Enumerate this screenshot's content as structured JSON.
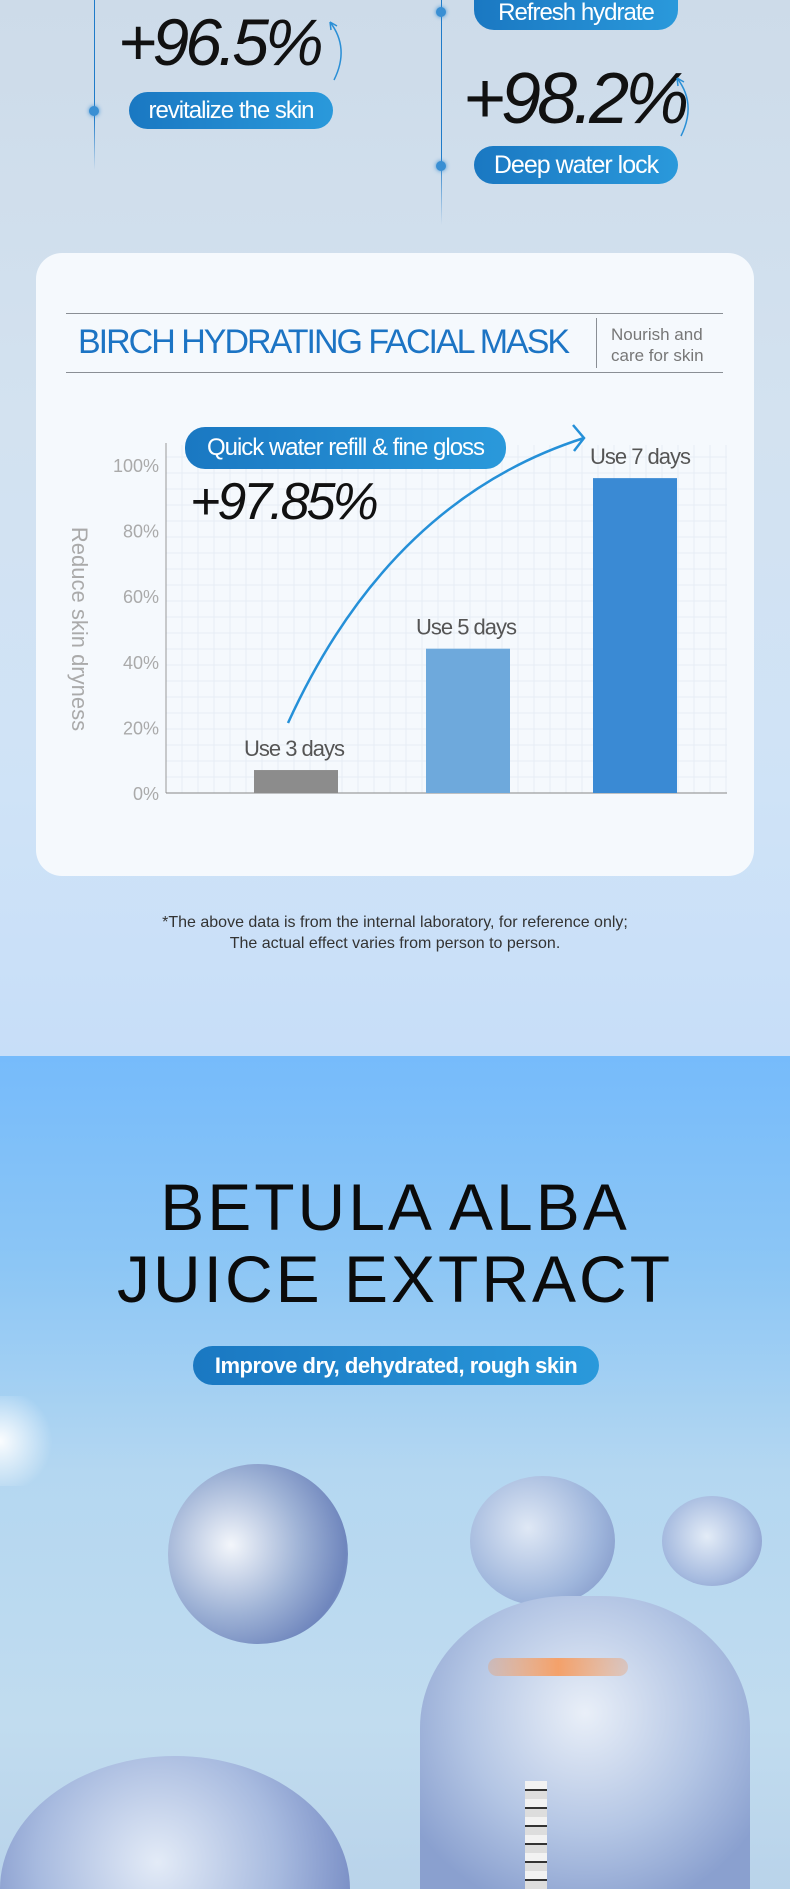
{
  "stats": [
    {
      "value": "+96.5%",
      "label": "revitalize the skin"
    },
    {
      "value": "+98.2%",
      "label": "Deep water lock"
    },
    {
      "label": "Refresh hydrate"
    }
  ],
  "card": {
    "title": "BIRCH HYDRATING FACIAL MASK",
    "subtitle_line1": "Nourish and",
    "subtitle_line2": "care for skin",
    "badge": "Quick water refill & fine gloss",
    "highlight": "+97.85%"
  },
  "chart_data": {
    "type": "bar",
    "categories": [
      "Use 3 days",
      "Use 5 days",
      "Use 7 days"
    ],
    "values": [
      7,
      44,
      96
    ],
    "ylabel": "Reduce skin dryness",
    "yticks": [
      "0%",
      "20%",
      "40%",
      "60%",
      "80%",
      "100%"
    ],
    "ylim": [
      0,
      100
    ],
    "colors": [
      "#8c8c8c",
      "#6ea9dc",
      "#3a8ad4"
    ],
    "grid": true
  },
  "footnote": {
    "line1": "*The above data is from the internal laboratory, for reference only;",
    "line2": "The actual effect varies from person to person."
  },
  "ingredient": {
    "title_line1": "BETULA ALBA",
    "title_line2": "JUICE EXTRACT",
    "tagline": "Improve dry, dehydrated, rough skin"
  },
  "colors": {
    "accent": "#1c74c4",
    "pill": "#1a78c2"
  }
}
